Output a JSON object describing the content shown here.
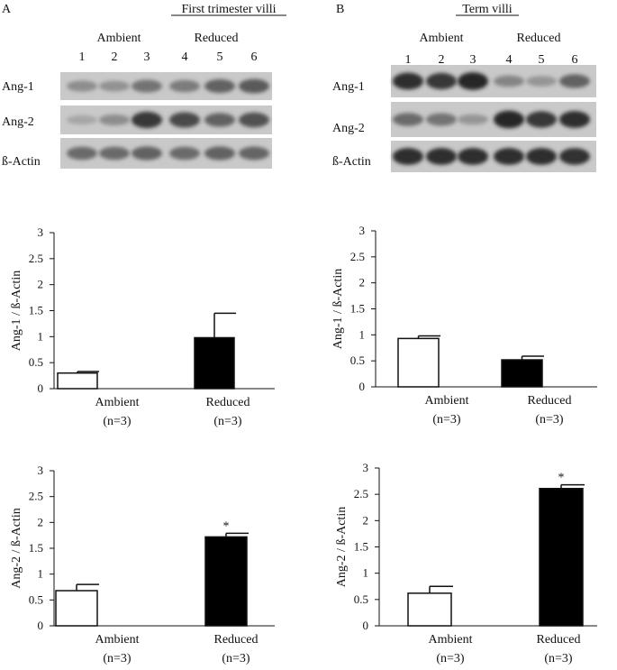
{
  "panels": [
    {
      "letter": "A",
      "title": "First trimester villi",
      "blot": {
        "group_labels": [
          "Ambient",
          "Reduced"
        ],
        "lane_numbers": [
          "1",
          "2",
          "3",
          "4",
          "5",
          "6"
        ],
        "rows": [
          {
            "label": "Ang-1",
            "intensity": [
              0.35,
              0.32,
              0.5,
              0.45,
              0.6,
              0.65
            ]
          },
          {
            "label": "Ang-2",
            "intensity": [
              0.2,
              0.35,
              0.85,
              0.75,
              0.6,
              0.7
            ]
          },
          {
            "label": "ß-Actin",
            "intensity": [
              0.55,
              0.55,
              0.6,
              0.55,
              0.6,
              0.58
            ]
          }
        ]
      }
    },
    {
      "letter": "B",
      "title": "Term villi",
      "blot": {
        "group_labels": [
          "Ambient",
          "Reduced"
        ],
        "lane_numbers": [
          "1",
          "2",
          "3",
          "4",
          "5",
          "6"
        ],
        "rows": [
          {
            "label": "Ang-1",
            "intensity": [
              0.9,
              0.85,
              0.95,
              0.4,
              0.3,
              0.6
            ]
          },
          {
            "label": "Ang-2",
            "intensity": [
              0.55,
              0.5,
              0.3,
              0.95,
              0.85,
              0.9
            ]
          },
          {
            "label": "ß-Actin",
            "intensity": [
              0.9,
              0.9,
              0.9,
              0.9,
              0.9,
              0.88
            ]
          }
        ]
      }
    }
  ],
  "chart_data": [
    {
      "type": "bar",
      "panel": "A",
      "categories": [
        "Ambient",
        "Reduced"
      ],
      "category_notes": [
        "(n=3)",
        "(n=3)"
      ],
      "values": [
        0.3,
        0.98
      ],
      "errors": [
        0.03,
        0.47
      ],
      "fills": [
        "#ffffff",
        "#000000"
      ],
      "significance": [
        "",
        ""
      ],
      "ylabel": "Ang-1 / ß-Actin",
      "ylim": [
        0,
        3
      ],
      "yticks": [
        "0",
        "0.5",
        "1",
        "1.5",
        "2",
        "2.5",
        "3"
      ]
    },
    {
      "type": "bar",
      "panel": "B",
      "categories": [
        "Ambient",
        "Reduced"
      ],
      "category_notes": [
        "(n=3)",
        "(n=3)"
      ],
      "values": [
        0.93,
        0.52
      ],
      "errors": [
        0.05,
        0.07
      ],
      "fills": [
        "#ffffff",
        "#000000"
      ],
      "significance": [
        "",
        ""
      ],
      "ylabel": "Ang-1 / ß-Actin",
      "ylim": [
        0,
        3
      ],
      "yticks": [
        "0",
        "0.5",
        "1",
        "1.5",
        "2",
        "2.5",
        "3"
      ]
    },
    {
      "type": "bar",
      "panel": "A",
      "categories": [
        "Ambient",
        "Reduced"
      ],
      "category_notes": [
        "(n=3)",
        "(n=3)"
      ],
      "values": [
        0.68,
        1.72
      ],
      "errors": [
        0.12,
        0.07
      ],
      "fills": [
        "#ffffff",
        "#000000"
      ],
      "significance": [
        "",
        "*"
      ],
      "ylabel": "Ang-2 / ß-Actin",
      "ylim": [
        0,
        3
      ],
      "yticks": [
        "0",
        "0.5",
        "1",
        "1.5",
        "2",
        "2.5",
        "3"
      ]
    },
    {
      "type": "bar",
      "panel": "B",
      "categories": [
        "Ambient",
        "Reduced"
      ],
      "category_notes": [
        "(n=3)",
        "(n=3)"
      ],
      "values": [
        0.62,
        2.61
      ],
      "errors": [
        0.13,
        0.07
      ],
      "fills": [
        "#ffffff",
        "#000000"
      ],
      "significance": [
        "",
        "*"
      ],
      "ylabel": "Ang-2 / ß-Actin",
      "ylim": [
        0,
        3
      ],
      "yticks": [
        "0",
        "0.5",
        "1",
        "1.5",
        "2",
        "2.5",
        "3"
      ]
    }
  ]
}
